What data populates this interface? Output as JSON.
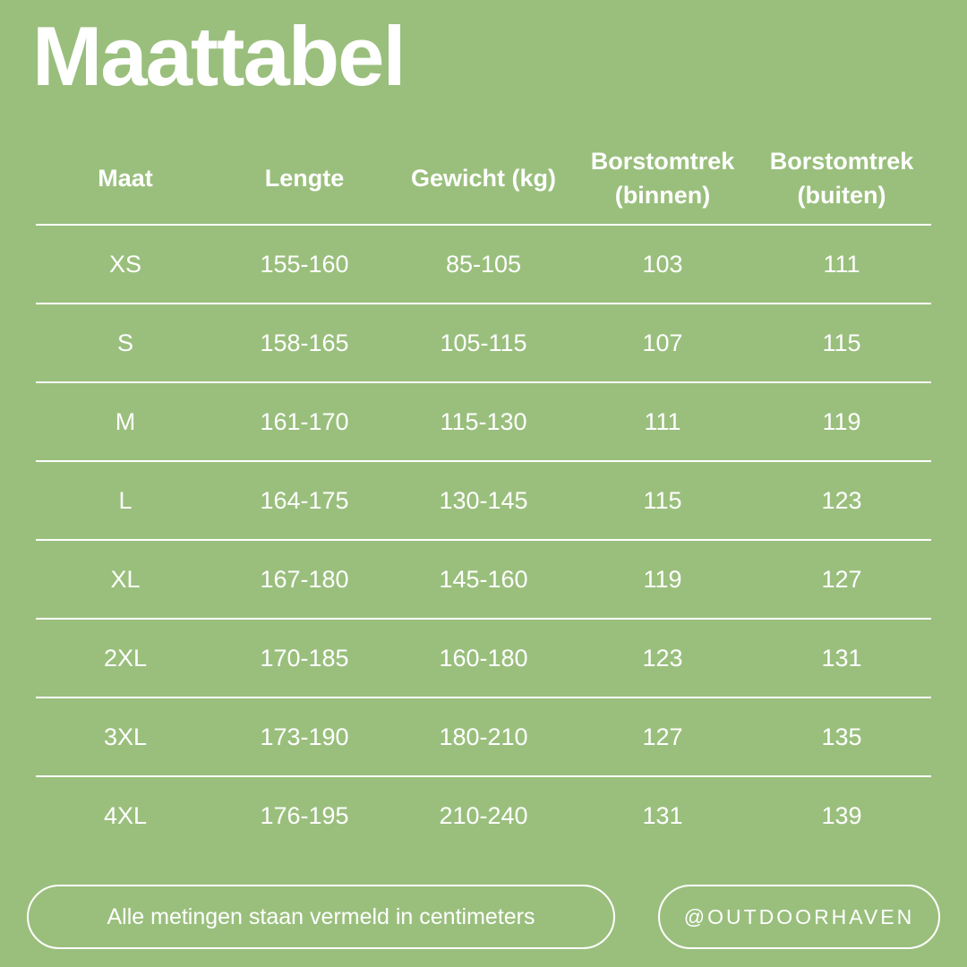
{
  "page": {
    "title": "Maattabel",
    "background_color": "#9ABF7D",
    "text_color": "#FFFFFF"
  },
  "table": {
    "headers": [
      "Maat",
      "Lengte",
      "Gewicht (kg)",
      "Borstomtrek (binnen)",
      "Borstomtrek (buiten)"
    ],
    "rows": [
      [
        "XS",
        "155-160",
        "85-105",
        "103",
        "111"
      ],
      [
        "S",
        "158-165",
        "105-115",
        "107",
        "115"
      ],
      [
        "M",
        "161-170",
        "115-130",
        "111",
        "119"
      ],
      [
        "L",
        "164-175",
        "130-145",
        "115",
        "123"
      ],
      [
        "XL",
        "167-180",
        "145-160",
        "119",
        "127"
      ],
      [
        "2XL",
        "170-185",
        "160-180",
        "123",
        "131"
      ],
      [
        "3XL",
        "173-190",
        "180-210",
        "127",
        "135"
      ],
      [
        "4XL",
        "176-195",
        "210-240",
        "131",
        "139"
      ]
    ]
  },
  "footer": {
    "note": "Alle metingen staan vermeld in centimeters",
    "handle": "@OUTDOORHAVEN"
  }
}
